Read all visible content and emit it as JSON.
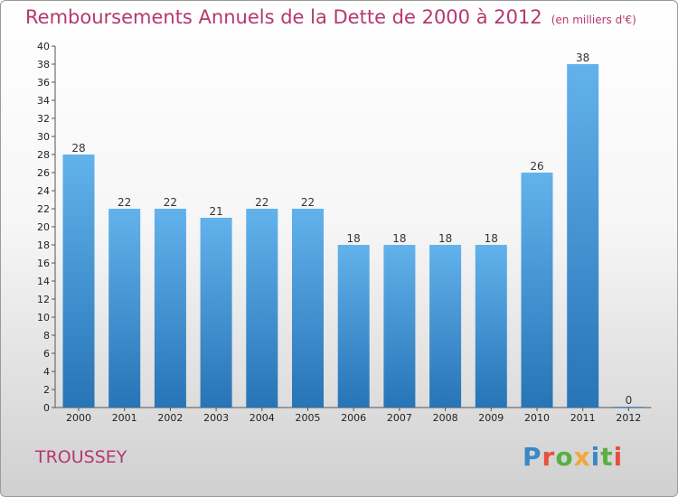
{
  "header": {
    "title": "Remboursements Annuels de la Dette de 2000 à 2012",
    "unit": "(en milliers d'€)"
  },
  "footer": {
    "commune": "TROUSSEY",
    "logo_text": "Proxiti"
  },
  "colors": {
    "title": "#b5386f",
    "bar_top": "#62b2ec",
    "bar_bottom": "#2774b6",
    "logo_letters": [
      "#3b88c8",
      "#e9503c",
      "#57b041",
      "#f2a73a",
      "#3b88c8",
      "#57b041",
      "#e9503c"
    ]
  },
  "chart_data": {
    "type": "bar",
    "categories": [
      "2000",
      "2001",
      "2002",
      "2003",
      "2004",
      "2005",
      "2006",
      "2007",
      "2008",
      "2009",
      "2010",
      "2011",
      "2012"
    ],
    "values": [
      28,
      22,
      22,
      21,
      22,
      22,
      18,
      18,
      18,
      18,
      26,
      38,
      0
    ],
    "title": "Remboursements Annuels de la Dette de 2000 à 2012",
    "xlabel": "",
    "ylabel": "",
    "ylim": [
      0,
      40
    ],
    "ytick_step": 2,
    "grid": false,
    "data_labels": true
  }
}
